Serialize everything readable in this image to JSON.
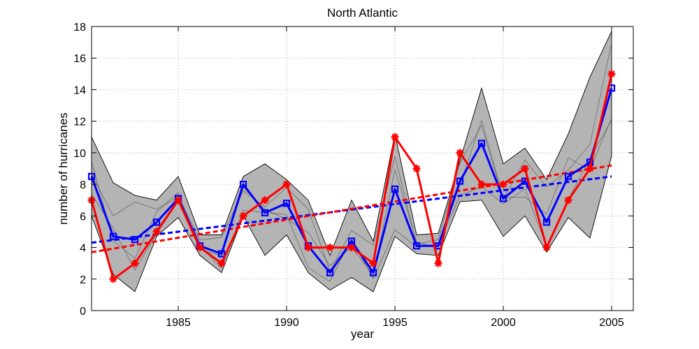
{
  "chart_data": {
    "type": "line",
    "title": "North Atlantic",
    "xlabel": "year",
    "ylabel": "number of hurricanes",
    "xlim": [
      1981,
      2006
    ],
    "ylim": [
      0,
      18
    ],
    "xticks": [
      1985,
      1990,
      1995,
      2000,
      2005
    ],
    "yticks": [
      0,
      2,
      4,
      6,
      8,
      10,
      12,
      14,
      16,
      18
    ],
    "grid": true,
    "legend": "none",
    "x": [
      1981,
      1982,
      1983,
      1984,
      1985,
      1986,
      1987,
      1988,
      1989,
      1990,
      1991,
      1992,
      1993,
      1994,
      1995,
      1996,
      1997,
      1998,
      1999,
      2000,
      2001,
      2002,
      2003,
      2004,
      2005
    ],
    "band": {
      "color": "#b4b4b4",
      "upper": [
        11.0,
        8.1,
        7.3,
        7.0,
        8.5,
        4.8,
        4.8,
        8.5,
        9.3,
        8.3,
        7.0,
        3.5,
        7.0,
        4.4,
        11.2,
        4.8,
        4.9,
        9.5,
        14.1,
        9.3,
        10.3,
        8.3,
        11.2,
        14.8,
        17.7
      ],
      "lower": [
        6.0,
        2.3,
        1.2,
        4.7,
        5.9,
        3.5,
        2.4,
        6.0,
        3.5,
        4.8,
        2.4,
        1.3,
        2.1,
        1.2,
        4.7,
        3.6,
        3.5,
        6.9,
        7.0,
        4.7,
        6.0,
        3.7,
        5.9,
        4.6,
        9.8
      ]
    },
    "series": [
      {
        "color": "#0000ff",
        "marker": "square",
        "values": [
          8.5,
          4.7,
          4.5,
          5.6,
          7.1,
          4.1,
          3.6,
          8.0,
          6.2,
          6.8,
          4.1,
          2.4,
          4.4,
          2.4,
          7.7,
          4.1,
          4.1,
          8.2,
          10.6,
          7.1,
          8.2,
          5.6,
          8.5,
          9.4,
          14.1
        ]
      },
      {
        "color": "#ff0000",
        "marker": "asterisk",
        "values": [
          7,
          2,
          3,
          5,
          7,
          4,
          3,
          6,
          7,
          8,
          4,
          4,
          4,
          3,
          11,
          9,
          3,
          10,
          8,
          8,
          9,
          4,
          7,
          9,
          15
        ]
      }
    ],
    "trends": [
      {
        "color": "#0000ff",
        "style": "dashed",
        "x": [
          1981,
          2005
        ],
        "y": [
          4.3,
          8.5
        ]
      },
      {
        "color": "#ff0000",
        "style": "dashed",
        "x": [
          1981,
          2005
        ],
        "y": [
          3.7,
          9.2
        ]
      }
    ]
  }
}
